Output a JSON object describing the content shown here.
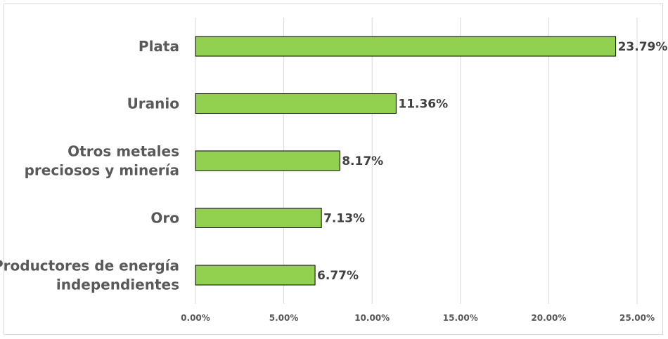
{
  "chart_data": {
    "type": "bar",
    "orientation": "horizontal",
    "categories": [
      [
        "Plata"
      ],
      [
        "Uranio"
      ],
      [
        "Otros metales",
        "preciosos y minería"
      ],
      [
        "Oro"
      ],
      [
        "Productores de energía",
        "independientes"
      ]
    ],
    "values": [
      23.79,
      11.36,
      8.17,
      7.13,
      6.77
    ],
    "data_labels": [
      "23.79%",
      "11.36%",
      "8.17%",
      "7.13%",
      "6.77%"
    ],
    "x_ticks": [
      "0.00%",
      "5.00%",
      "10.00%",
      "15.00%",
      "20.00%",
      "25.00%"
    ],
    "x_tick_values": [
      0,
      5,
      10,
      15,
      20,
      25
    ],
    "xlim": [
      0,
      25
    ],
    "grid": true,
    "legend": "none",
    "colors": {
      "bar_fill": "#92d050",
      "bar_stroke": "#000000",
      "grid": "#d9d9d9",
      "frame": "#d9d9d9",
      "text": "#595959"
    }
  }
}
